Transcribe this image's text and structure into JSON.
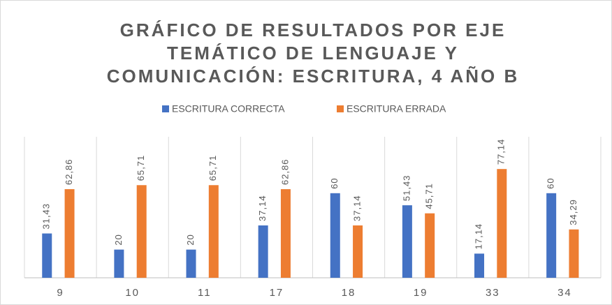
{
  "chart_data": {
    "type": "bar",
    "title": [
      "GRÁFICO DE RESULTADOS POR EJE",
      "TEMÁTICO DE LENGUAJE Y",
      "COMUNICACIÓN: ESCRITURA, 4 AÑO B"
    ],
    "categories": [
      "9",
      "10",
      "11",
      "17",
      "18",
      "19",
      "33",
      "34"
    ],
    "series": [
      {
        "name": "ESCRITURA CORRECTA",
        "color": "#4472c4",
        "values": [
          31.43,
          20,
          20,
          37.14,
          60,
          51.43,
          17.14,
          60
        ],
        "value_labels": [
          "31,43",
          "20",
          "20",
          "37,14",
          "60",
          "51,43",
          "17,14",
          "60"
        ]
      },
      {
        "name": "ESCRITURA ERRADA",
        "color": "#ed7d31",
        "values": [
          62.86,
          65.71,
          65.71,
          62.86,
          37.14,
          45.71,
          77.14,
          34.29
        ],
        "value_labels": [
          "62,86",
          "65,71",
          "65,71",
          "62,86",
          "37,14",
          "45,71",
          "77,14",
          "34,29"
        ]
      }
    ],
    "ylim": [
      0,
      100
    ]
  }
}
